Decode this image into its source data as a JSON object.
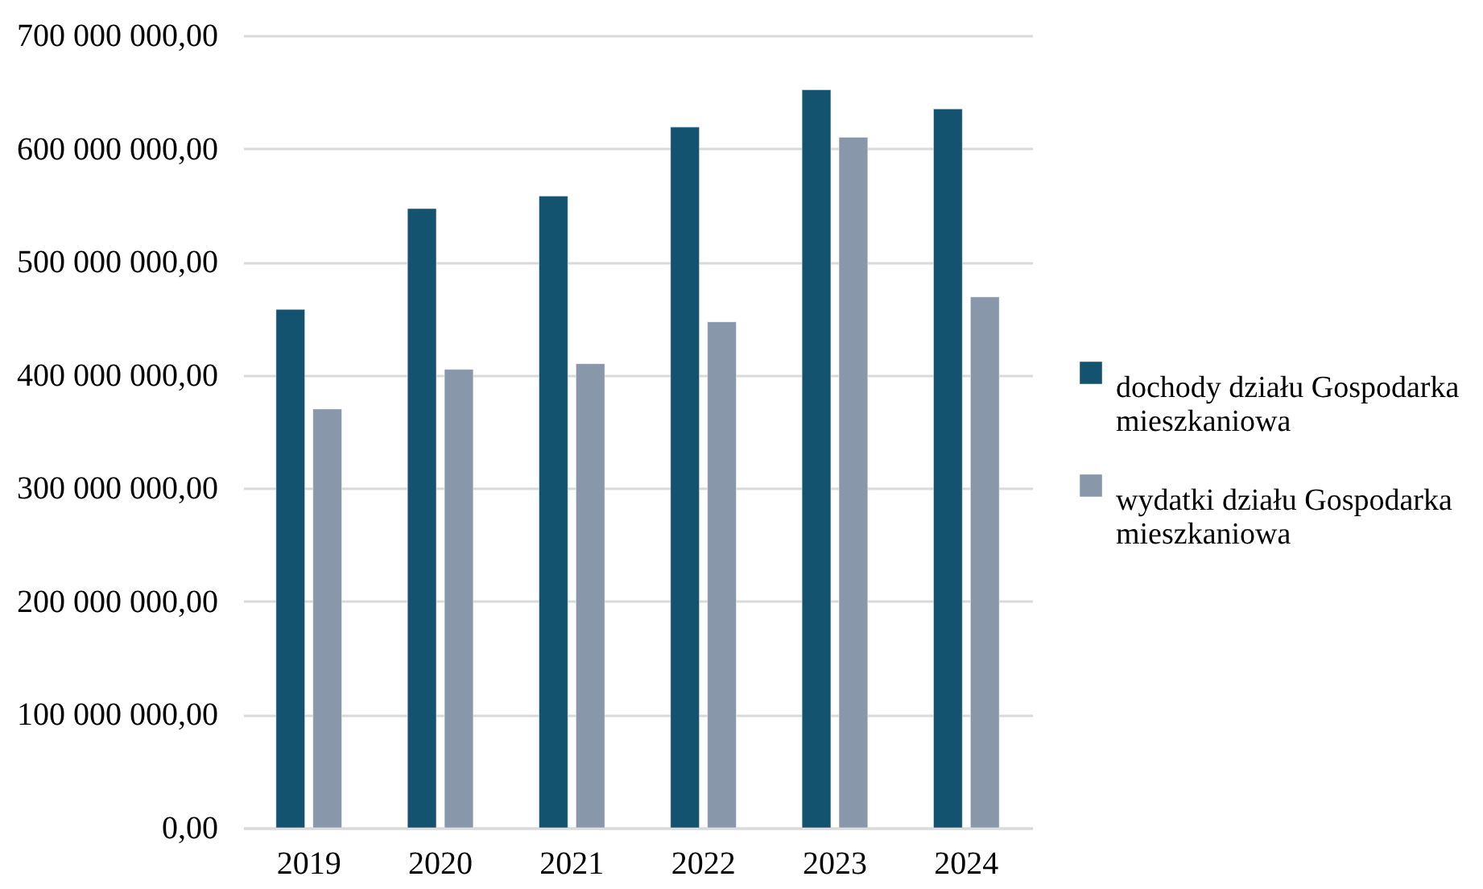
{
  "chart_data": {
    "type": "bar",
    "categories": [
      "2019",
      "2020",
      "2021",
      "2022",
      "2023",
      "2024"
    ],
    "series": [
      {
        "name": "dochody działu Gospodarka mieszkaniowa",
        "color": "#13536f",
        "values": [
          458000000,
          547000000,
          558000000,
          619000000,
          652000000,
          635000000
        ]
      },
      {
        "name": "wydatki działu Gospodarka mieszkaniowa",
        "color": "#8898aa",
        "values": [
          370000000,
          405000000,
          410000000,
          447000000,
          610000000,
          469000000
        ]
      }
    ],
    "ylim": [
      0,
      700000000
    ],
    "yticks": [
      {
        "value": 0,
        "label": "0,00"
      },
      {
        "value": 100000000,
        "label": "100 000 000,00"
      },
      {
        "value": 200000000,
        "label": "200 000 000,00"
      },
      {
        "value": 300000000,
        "label": "300 000 000,00"
      },
      {
        "value": 400000000,
        "label": "400 000 000,00"
      },
      {
        "value": 500000000,
        "label": "500 000 000,00"
      },
      {
        "value": 600000000,
        "label": "600 000 000,00"
      },
      {
        "value": 700000000,
        "label": "700 000 000,00"
      }
    ],
    "grid": "y",
    "legend": "right"
  }
}
